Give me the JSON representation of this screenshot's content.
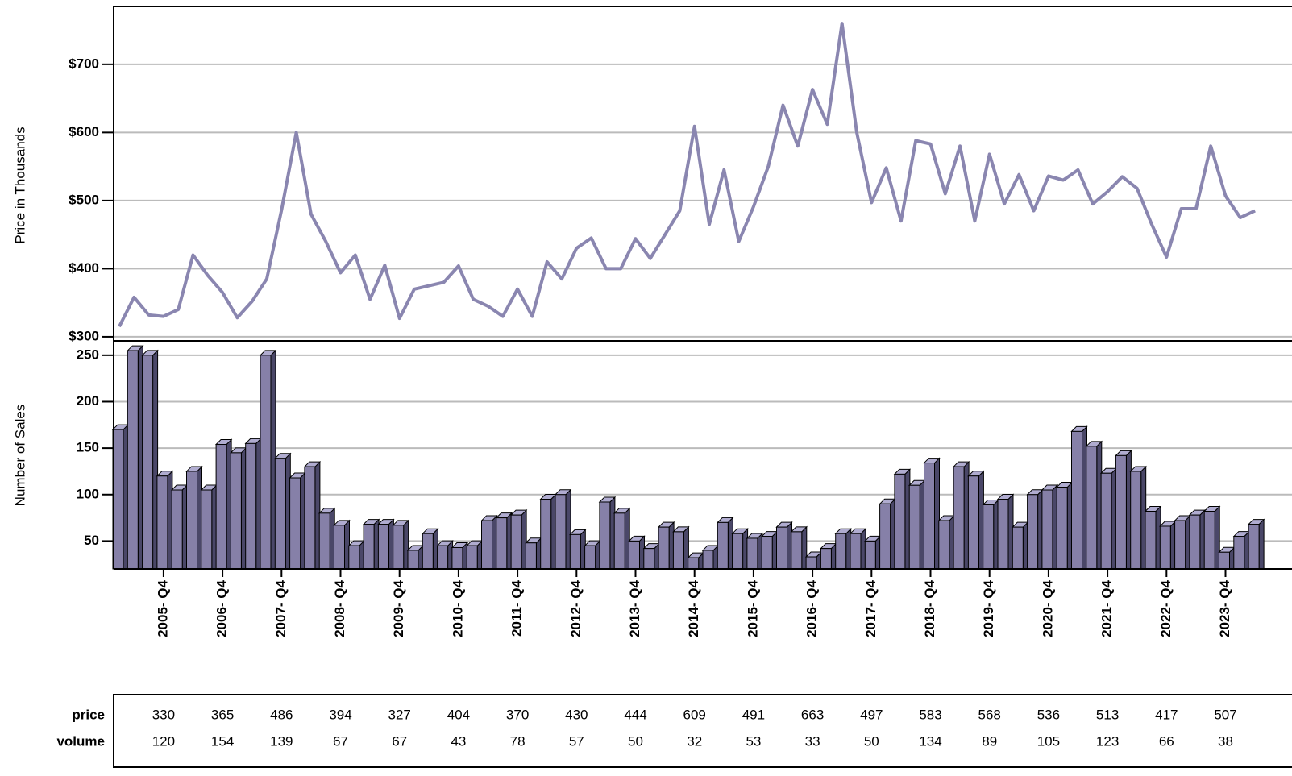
{
  "chart_data": [
    {
      "type": "line",
      "ylabel": "Price in Thousands",
      "color": "#8a86b0",
      "categories": [
        null,
        null,
        null,
        "2005- Q4",
        null,
        null,
        null,
        "2006- Q4",
        null,
        null,
        null,
        "2007- Q4",
        null,
        null,
        null,
        "2008- Q4",
        null,
        null,
        null,
        "2009- Q4",
        null,
        null,
        null,
        "2010- Q4",
        null,
        null,
        null,
        "2011- Q4",
        null,
        null,
        null,
        "2012- Q4",
        null,
        null,
        null,
        "2013- Q4",
        null,
        null,
        null,
        "2014- Q4",
        null,
        null,
        null,
        "2015- Q4",
        null,
        null,
        null,
        "2016- Q4",
        null,
        null,
        null,
        "2017- Q4",
        null,
        null,
        null,
        "2018- Q4",
        null,
        null,
        null,
        "2019- Q4",
        null,
        null,
        null,
        "2020- Q4",
        null,
        null,
        null,
        "2021- Q4",
        null,
        null,
        null,
        "2022- Q4",
        null,
        null,
        null,
        "2023- Q4",
        null,
        null
      ],
      "values": [
        315,
        358,
        332,
        330,
        340,
        420,
        390,
        365,
        328,
        352,
        385,
        486,
        600,
        480,
        440,
        394,
        420,
        355,
        405,
        327,
        370,
        375,
        380,
        404,
        355,
        345,
        330,
        370,
        330,
        410,
        385,
        430,
        445,
        400,
        400,
        444,
        415,
        450,
        485,
        609,
        465,
        545,
        440,
        491,
        550,
        640,
        580,
        663,
        612,
        760,
        600,
        497,
        548,
        470,
        588,
        583,
        510,
        580,
        470,
        568,
        495,
        538,
        485,
        536,
        530,
        545,
        495,
        513,
        535,
        518,
        465,
        417,
        488,
        488,
        580,
        507,
        475,
        485
      ],
      "ylim": [
        294,
        785
      ],
      "yticks": [
        {
          "value": 300,
          "label": "$300"
        },
        {
          "value": 400,
          "label": "$400"
        },
        {
          "value": 500,
          "label": "$500"
        },
        {
          "value": 600,
          "label": "$600"
        },
        {
          "value": 700,
          "label": "$700"
        }
      ],
      "grid": true
    },
    {
      "type": "bar3d",
      "ylabel": "Number of Sales",
      "color": "#8680a8",
      "values": [
        170,
        255,
        250,
        120,
        105,
        125,
        105,
        154,
        145,
        155,
        250,
        139,
        118,
        130,
        80,
        67,
        45,
        68,
        68,
        67,
        40,
        58,
        45,
        43,
        45,
        72,
        75,
        78,
        48,
        95,
        100,
        57,
        45,
        92,
        80,
        50,
        42,
        65,
        60,
        32,
        40,
        70,
        58,
        53,
        55,
        65,
        60,
        33,
        42,
        58,
        58,
        50,
        90,
        122,
        110,
        134,
        72,
        130,
        120,
        89,
        95,
        65,
        100,
        105,
        108,
        168,
        152,
        123,
        142,
        125,
        82,
        66,
        72,
        78,
        82,
        38,
        55,
        68
      ],
      "ylim": [
        20,
        262
      ],
      "yticks": [
        50,
        100,
        150,
        200,
        250
      ],
      "grid": true
    }
  ],
  "table": {
    "rows": [
      {
        "label": "price",
        "values": [
          "330",
          "365",
          "486",
          "394",
          "327",
          "404",
          "370",
          "430",
          "444",
          "609",
          "491",
          "663",
          "497",
          "583",
          "568",
          "536",
          "513",
          "417",
          "507"
        ]
      },
      {
        "label": "volume",
        "values": [
          "120",
          "154",
          "139",
          "67",
          "67",
          "43",
          "78",
          "57",
          "50",
          "32",
          "53",
          "33",
          "50",
          "134",
          "89",
          "105",
          "123",
          "66",
          "38"
        ]
      }
    ]
  }
}
